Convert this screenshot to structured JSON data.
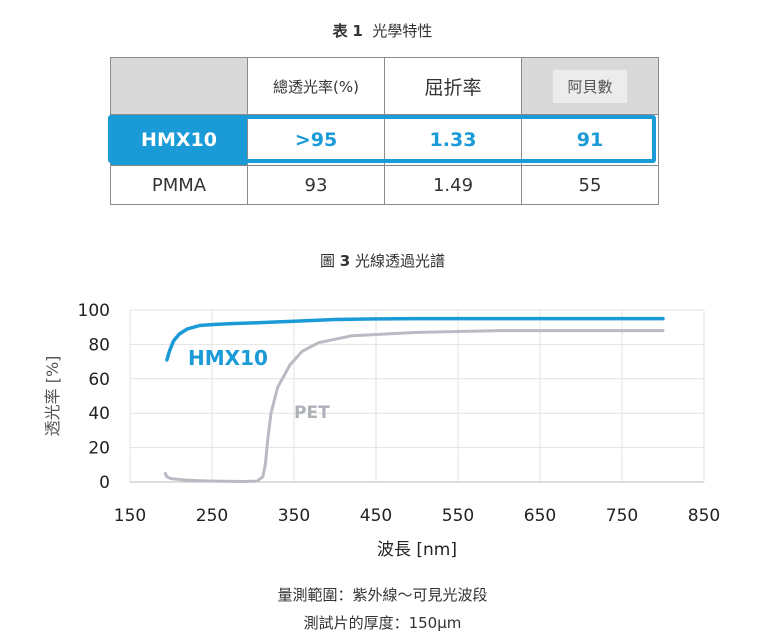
{
  "table": {
    "title_prefix": "表",
    "title_num": "1",
    "title_text": "光學特性",
    "headers": [
      "總透光率(%)",
      "屈折率",
      "阿貝數"
    ],
    "rows": [
      {
        "name": "HMX10",
        "values": [
          ">95",
          "1.33",
          "91"
        ]
      },
      {
        "name": "PMMA",
        "values": [
          "93",
          "1.49",
          "55"
        ]
      }
    ]
  },
  "chart_title": {
    "prefix": "圖",
    "num": "3",
    "text": "光線透過光譜"
  },
  "chart_data": {
    "type": "line",
    "xlabel": "波長 [nm]",
    "ylabel": "透光率 [%]",
    "xlim": [
      150,
      850
    ],
    "ylim": [
      0,
      100
    ],
    "xticks": [
      150,
      250,
      350,
      450,
      550,
      650,
      750,
      850
    ],
    "yticks": [
      0,
      20,
      40,
      60,
      80,
      100
    ],
    "grid": true,
    "series": [
      {
        "name": "HMX10",
        "color": "#1a9ad6",
        "x": [
          195,
          198,
          203,
          210,
          220,
          235,
          250,
          270,
          300,
          350,
          400,
          450,
          500,
          600,
          700,
          800
        ],
        "y": [
          71,
          76,
          82,
          86,
          89,
          91,
          91.5,
          92,
          92.5,
          93.5,
          94.5,
          94.8,
          95,
          95,
          95,
          95
        ]
      },
      {
        "name": "PET",
        "color": "#b8bcc2",
        "x": [
          193,
          195,
          200,
          220,
          250,
          290,
          305,
          312,
          315,
          318,
          322,
          330,
          345,
          360,
          380,
          420,
          500,
          600,
          700,
          800
        ],
        "y": [
          5,
          3,
          2,
          1,
          0.5,
          0.3,
          0.5,
          3,
          10,
          25,
          40,
          55,
          68,
          76,
          81,
          85,
          87,
          88,
          88,
          88
        ]
      }
    ]
  },
  "footer": {
    "line1": "量測範圍：紫外線～可見光波段",
    "line2": "測試片的厚度：150μm"
  }
}
